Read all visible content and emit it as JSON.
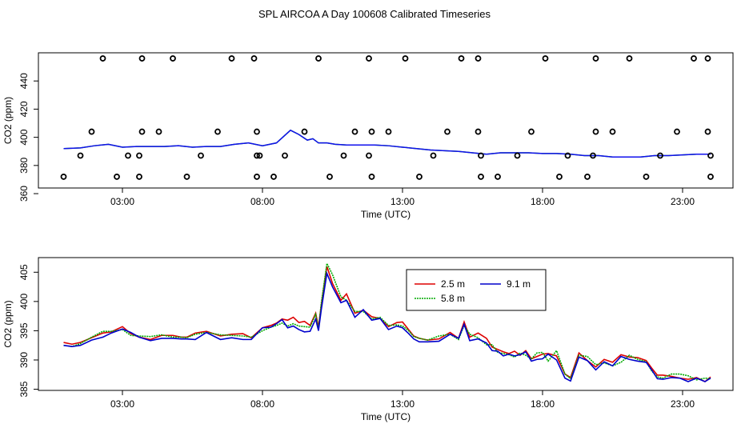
{
  "figure_title": "SPL AIRCOA A  Day 100608  Calibrated Timeseries",
  "chart_data": [
    {
      "type": "line+scatter",
      "xlabel": "Time (UTC)",
      "ylabel": "CO2 (ppm)",
      "xlim": [
        0.0,
        24.8
      ],
      "ylim": [
        364,
        460
      ],
      "x_ticks": [
        3,
        8,
        13,
        18,
        23
      ],
      "x_tick_labels": [
        "03:00",
        "08:00",
        "13:00",
        "18:00",
        "23:00"
      ],
      "y_ticks": [
        360,
        380,
        400,
        420,
        440
      ],
      "y_tick_labels": [
        "360",
        "380",
        "400",
        "420",
        "440"
      ],
      "line_color": "#1010ee",
      "line_x": [
        0.9,
        1.5,
        2.0,
        2.5,
        3.0,
        3.5,
        4.0,
        4.5,
        5.0,
        5.5,
        6.0,
        6.5,
        7.0,
        7.5,
        8.0,
        8.5,
        9.0,
        9.3,
        9.6,
        9.8,
        10.0,
        10.3,
        10.6,
        11.0,
        11.5,
        12.0,
        12.5,
        13.0,
        13.5,
        14.0,
        14.5,
        15.0,
        15.5,
        16.0,
        16.5,
        17.0,
        17.5,
        18.0,
        18.5,
        19.0,
        19.5,
        20.0,
        20.5,
        21.0,
        21.5,
        22.0,
        22.5,
        23.0,
        23.5,
        24.0
      ],
      "line_y": [
        392,
        392.5,
        394,
        395,
        393,
        393.5,
        393.5,
        393.5,
        394,
        393,
        393.5,
        393.5,
        395,
        396,
        394,
        396,
        405,
        402,
        398,
        399,
        396,
        396,
        395,
        394.5,
        394.5,
        394.5,
        394,
        393,
        392,
        391,
        390.5,
        390,
        389,
        388,
        389,
        389,
        389,
        388.5,
        388.5,
        388,
        387,
        387,
        386,
        386,
        386,
        387,
        387,
        387.5,
        388,
        388
      ],
      "scatter_color": "#000000",
      "scatter_x": [
        0.9,
        1.5,
        1.9,
        2.3,
        2.8,
        3.2,
        3.6,
        3.6,
        3.7,
        3.7,
        4.3,
        4.8,
        5.3,
        5.8,
        6.4,
        6.9,
        7.7,
        7.8,
        7.8,
        7.8,
        7.9,
        8.4,
        8.8,
        9.5,
        10.0,
        10.4,
        10.9,
        11.3,
        11.8,
        11.8,
        11.9,
        11.9,
        12.5,
        13.1,
        13.6,
        14.1,
        14.6,
        15.1,
        15.7,
        15.7,
        15.8,
        15.8,
        16.4,
        17.1,
        17.6,
        18.1,
        18.6,
        18.9,
        19.6,
        19.8,
        19.9,
        19.9,
        20.5,
        21.1,
        21.7,
        22.2,
        22.8,
        23.4,
        23.9,
        23.9,
        24.0,
        24.0
      ],
      "scatter_y": [
        372,
        387,
        404,
        456,
        372,
        387,
        372,
        387,
        404,
        456,
        404,
        456,
        372,
        387,
        404,
        456,
        456,
        404,
        387,
        372,
        387,
        372,
        387,
        404,
        456,
        372,
        387,
        404,
        456,
        387,
        372,
        404,
        404,
        456,
        372,
        387,
        404,
        456,
        456,
        404,
        387,
        372,
        372,
        387,
        404,
        456,
        372,
        387,
        372,
        387,
        404,
        456,
        404,
        456,
        372,
        387,
        404,
        456,
        456,
        404,
        387,
        372
      ]
    },
    {
      "type": "line",
      "xlabel": "Time (UTC)",
      "ylabel": "CO2 (ppm)",
      "xlim": [
        0.0,
        24.8
      ],
      "ylim": [
        384.8,
        407.5
      ],
      "x_ticks": [
        3,
        8,
        13,
        18,
        23
      ],
      "x_tick_labels": [
        "03:00",
        "08:00",
        "13:00",
        "18:00",
        "23:00"
      ],
      "y_ticks": [
        385,
        390,
        395,
        400,
        405
      ],
      "y_tick_labels": [
        "385",
        "390",
        "395",
        "400",
        "405"
      ],
      "legend": {
        "placement": "top-center",
        "entries": [
          {
            "name": "2.5 m",
            "color": "#dd0000",
            "dash": ""
          },
          {
            "name": "9.1 m",
            "color": "#0000cc",
            "dash": ""
          },
          {
            "name": "5.8 m",
            "color": "#00aa00",
            "dash": "2,1"
          }
        ]
      },
      "series": [
        {
          "name": "2.5 m",
          "color": "#dd0000",
          "dash": "",
          "x": [
            0.9,
            1.2,
            1.5,
            1.9,
            2.3,
            2.6,
            3.0,
            3.3,
            3.6,
            4.0,
            4.4,
            4.8,
            5.1,
            5.3,
            5.6,
            6.0,
            6.5,
            6.9,
            7.3,
            7.6,
            8.0,
            8.3,
            8.5,
            8.7,
            8.9,
            9.1,
            9.3,
            9.5,
            9.7,
            9.9,
            10.0,
            10.1,
            10.3,
            10.5,
            10.8,
            11.0,
            11.3,
            11.6,
            11.9,
            12.2,
            12.5,
            12.8,
            13.0,
            13.2,
            13.4,
            13.6,
            13.9,
            14.3,
            14.7,
            15.0,
            15.2,
            15.4,
            15.7,
            16.0,
            16.2,
            16.4,
            16.6,
            16.8,
            17.0,
            17.2,
            17.4,
            17.6,
            17.8,
            18.0,
            18.2,
            18.5,
            18.8,
            19.0,
            19.3,
            19.6,
            19.9,
            20.2,
            20.5,
            20.8,
            21.1,
            21.4,
            21.7,
            21.9,
            22.1,
            22.3,
            22.6,
            22.9,
            23.2,
            23.5,
            23.8,
            24.0
          ],
          "y": [
            393.0,
            392.7,
            393.0,
            393.8,
            394.6,
            394.8,
            395.7,
            394.5,
            393.9,
            393.5,
            394.2,
            394.2,
            393.9,
            393.9,
            394.6,
            394.9,
            394.1,
            394.4,
            394.5,
            393.8,
            395.5,
            395.9,
            396.3,
            397.0,
            396.8,
            397.3,
            396.4,
            396.6,
            395.9,
            398.0,
            395.6,
            399.4,
            406.0,
            403.1,
            400.2,
            401.3,
            398.0,
            398.5,
            397.4,
            397.1,
            395.7,
            396.4,
            396.5,
            395.3,
            394.1,
            393.7,
            393.4,
            393.6,
            394.7,
            393.7,
            396.5,
            393.9,
            394.6,
            393.7,
            392.2,
            391.8,
            391.4,
            391.1,
            391.5,
            390.8,
            391.6,
            390.2,
            390.6,
            391.0,
            391.1,
            390.7,
            387.6,
            387.0,
            391.2,
            389.9,
            388.8,
            390.1,
            389.6,
            390.9,
            390.5,
            390.4,
            389.9,
            388.6,
            387.4,
            387.4,
            387.2,
            386.9,
            386.7,
            387.0,
            386.3,
            387.1
          ]
        },
        {
          "name": "5.8 m",
          "color": "#00aa00",
          "dash": "2,1",
          "x": [
            0.9,
            1.2,
            1.5,
            1.9,
            2.3,
            2.6,
            3.0,
            3.3,
            3.6,
            4.0,
            4.4,
            4.8,
            5.1,
            5.3,
            5.6,
            6.0,
            6.5,
            6.9,
            7.3,
            7.6,
            8.0,
            8.3,
            8.5,
            8.7,
            8.9,
            9.1,
            9.3,
            9.5,
            9.7,
            9.9,
            10.0,
            10.1,
            10.3,
            10.5,
            10.8,
            11.0,
            11.3,
            11.6,
            11.9,
            12.2,
            12.5,
            12.8,
            13.0,
            13.2,
            13.4,
            13.6,
            13.9,
            14.3,
            14.7,
            15.0,
            15.2,
            15.4,
            15.7,
            16.0,
            16.2,
            16.4,
            16.6,
            16.8,
            17.0,
            17.2,
            17.4,
            17.6,
            17.8,
            18.0,
            18.2,
            18.5,
            18.8,
            19.0,
            19.3,
            19.6,
            19.9,
            20.2,
            20.5,
            20.8,
            21.1,
            21.4,
            21.7,
            21.9,
            22.1,
            22.3,
            22.6,
            22.9,
            23.2,
            23.5,
            23.8,
            24.0
          ],
          "y": [
            392.5,
            392.3,
            392.8,
            393.9,
            394.9,
            394.9,
            395.2,
            394.2,
            394.1,
            394.0,
            394.3,
            393.9,
            393.9,
            393.8,
            394.4,
            394.7,
            394.3,
            394.2,
            394.1,
            393.9,
            395.0,
            395.6,
            395.9,
            396.3,
            395.8,
            396.2,
            395.8,
            395.7,
            395.6,
            397.8,
            395.2,
            399.7,
            406.5,
            404.6,
            400.8,
            400.2,
            398.3,
            398.3,
            397.0,
            397.3,
            395.9,
            396.0,
            395.8,
            395.1,
            394.0,
            393.7,
            393.4,
            394.1,
            394.4,
            393.5,
            395.9,
            394.4,
            393.8,
            392.6,
            392.6,
            391.3,
            391.1,
            390.9,
            390.5,
            391.2,
            390.8,
            390.2,
            391.2,
            391.3,
            389.8,
            391.6,
            387.6,
            386.8,
            390.8,
            390.6,
            389.2,
            389.5,
            389.0,
            389.6,
            390.8,
            390.1,
            389.7,
            388.1,
            387.1,
            386.9,
            387.6,
            387.6,
            387.3,
            386.6,
            386.9,
            386.8
          ]
        },
        {
          "name": "9.1 m",
          "color": "#0000cc",
          "dash": "",
          "x": [
            0.9,
            1.2,
            1.5,
            1.9,
            2.3,
            2.6,
            3.0,
            3.3,
            3.6,
            4.0,
            4.4,
            4.8,
            5.1,
            5.3,
            5.6,
            6.0,
            6.5,
            6.9,
            7.3,
            7.6,
            8.0,
            8.3,
            8.5,
            8.7,
            8.9,
            9.1,
            9.3,
            9.5,
            9.7,
            9.9,
            10.0,
            10.1,
            10.3,
            10.5,
            10.8,
            11.0,
            11.3,
            11.6,
            11.9,
            12.2,
            12.5,
            12.8,
            13.0,
            13.2,
            13.4,
            13.6,
            13.9,
            14.3,
            14.7,
            15.0,
            15.2,
            15.4,
            15.7,
            16.0,
            16.2,
            16.4,
            16.6,
            16.8,
            17.0,
            17.2,
            17.4,
            17.6,
            17.8,
            18.0,
            18.2,
            18.5,
            18.8,
            19.0,
            19.3,
            19.6,
            19.9,
            20.2,
            20.5,
            20.8,
            21.1,
            21.4,
            21.7,
            21.9,
            22.1,
            22.3,
            22.6,
            22.9,
            23.2,
            23.5,
            23.8,
            24.0
          ],
          "y": [
            392.5,
            392.3,
            392.5,
            393.4,
            393.9,
            394.6,
            395.3,
            394.7,
            393.9,
            393.3,
            393.7,
            393.7,
            393.6,
            393.6,
            393.5,
            394.7,
            393.5,
            393.8,
            393.5,
            393.5,
            395.5,
            395.6,
            396.2,
            396.9,
            395.5,
            395.8,
            395.2,
            394.8,
            394.9,
            397.0,
            395.0,
            398.6,
            404.8,
            402.5,
            399.8,
            400.2,
            397.3,
            398.6,
            396.8,
            397.1,
            395.2,
            395.8,
            395.5,
            394.6,
            393.6,
            393.1,
            393.1,
            393.2,
            394.4,
            393.7,
            396.1,
            393.3,
            393.6,
            392.9,
            391.6,
            391.5,
            390.7,
            391.0,
            390.7,
            390.9,
            391.4,
            389.8,
            390.1,
            390.2,
            391.0,
            390.0,
            386.9,
            386.4,
            390.5,
            389.9,
            388.3,
            389.7,
            389.0,
            390.6,
            390.1,
            389.8,
            389.6,
            388.3,
            386.8,
            386.7,
            387.0,
            386.9,
            386.3,
            386.9,
            386.3,
            386.9
          ]
        }
      ]
    }
  ]
}
